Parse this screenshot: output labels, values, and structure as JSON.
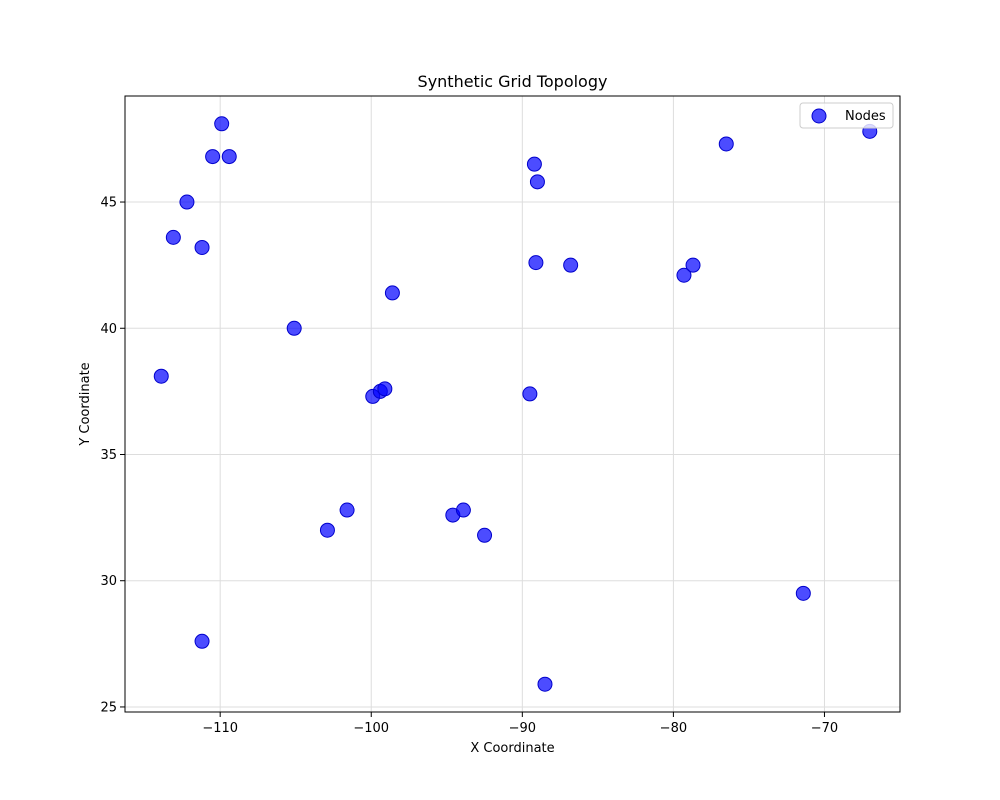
{
  "chart_data": {
    "type": "scatter",
    "title": "Synthetic Grid Topology",
    "xlabel": "X Coordinate",
    "ylabel": "Y Coordinate",
    "xlim": [
      -116.3,
      -65.0
    ],
    "ylim": [
      24.8,
      49.2
    ],
    "xticks": [
      -110,
      -100,
      -90,
      -80,
      -70
    ],
    "yticks": [
      25,
      30,
      35,
      40,
      45
    ],
    "grid": true,
    "legend": {
      "position": "top-right",
      "entries": [
        "Nodes"
      ]
    },
    "colors": {
      "marker": "#0000ff",
      "marker_edge": "#0000cc",
      "grid": "#dddddd"
    },
    "series": [
      {
        "name": "Nodes",
        "points": [
          {
            "x": -109.9,
            "y": 48.1
          },
          {
            "x": -110.5,
            "y": 46.8
          },
          {
            "x": -109.4,
            "y": 46.8
          },
          {
            "x": -112.2,
            "y": 45.0
          },
          {
            "x": -113.1,
            "y": 43.6
          },
          {
            "x": -111.2,
            "y": 43.2
          },
          {
            "x": -105.1,
            "y": 40.0
          },
          {
            "x": -113.9,
            "y": 38.1
          },
          {
            "x": -111.2,
            "y": 27.6
          },
          {
            "x": -102.9,
            "y": 32.0
          },
          {
            "x": -101.6,
            "y": 32.8
          },
          {
            "x": -99.9,
            "y": 37.3
          },
          {
            "x": -99.4,
            "y": 37.5
          },
          {
            "x": -99.1,
            "y": 37.6
          },
          {
            "x": -98.6,
            "y": 41.4
          },
          {
            "x": -94.6,
            "y": 32.6
          },
          {
            "x": -93.9,
            "y": 32.8
          },
          {
            "x": -92.5,
            "y": 31.8
          },
          {
            "x": -89.5,
            "y": 37.4
          },
          {
            "x": -89.2,
            "y": 46.5
          },
          {
            "x": -89.0,
            "y": 45.8
          },
          {
            "x": -89.1,
            "y": 42.6
          },
          {
            "x": -86.8,
            "y": 42.5
          },
          {
            "x": -88.5,
            "y": 25.9
          },
          {
            "x": -79.3,
            "y": 42.1
          },
          {
            "x": -78.7,
            "y": 42.5
          },
          {
            "x": -76.5,
            "y": 47.3
          },
          {
            "x": -71.4,
            "y": 29.5
          },
          {
            "x": -67.0,
            "y": 47.8
          }
        ]
      }
    ]
  }
}
